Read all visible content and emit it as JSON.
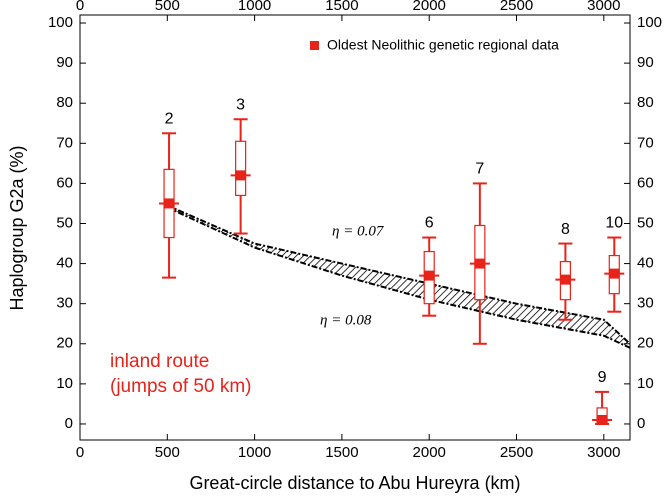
{
  "chart_data": {
    "type": "box",
    "x_label": "Great-circle distance to Abu Hureyra (km)",
    "y_label": "Haplogroup G2a (%)",
    "xlim": [
      0,
      3150
    ],
    "ylim": [
      -4,
      102
    ],
    "xticks": [
      0,
      500,
      1000,
      1500,
      2000,
      2500,
      3000
    ],
    "yticks": [
      0,
      10,
      20,
      30,
      40,
      50,
      60,
      70,
      80,
      90,
      100
    ],
    "legend": "Oldest Neolithic genetic regional data",
    "legend_position": "upper right",
    "color": "#e8231a",
    "boxes": [
      {
        "label": "2",
        "x": 510,
        "mean": 55,
        "q1": 46.5,
        "q3": 63.5,
        "low": 36.5,
        "high": 72.5
      },
      {
        "label": "3",
        "x": 920,
        "mean": 62,
        "q1": 57,
        "q3": 70.5,
        "low": 47.5,
        "high": 76
      },
      {
        "label": "6",
        "x": 2000,
        "mean": 37,
        "q1": 30,
        "q3": 43,
        "low": 27,
        "high": 46.5
      },
      {
        "label": "7",
        "x": 2290,
        "mean": 40,
        "q1": 31,
        "q3": 49.5,
        "low": 20,
        "high": 60
      },
      {
        "label": "8",
        "x": 2780,
        "mean": 36,
        "q1": 31,
        "q3": 40.5,
        "low": 26,
        "high": 45
      },
      {
        "label": "9",
        "x": 2990,
        "mean": 1,
        "q1": 0,
        "q3": 4,
        "low": 0,
        "high": 8
      },
      {
        "label": "10",
        "x": 3060,
        "mean": 37.5,
        "q1": 32.5,
        "q3": 42,
        "low": 28,
        "high": 46.5
      }
    ],
    "curves": [
      {
        "name": "η = 0.07",
        "x": [
          500,
          1000,
          1500,
          2000,
          2500,
          3000,
          3150
        ],
        "values": [
          54.5,
          45,
          40,
          35,
          30,
          26,
          20
        ]
      },
      {
        "name": "η = 0.08",
        "x": [
          500,
          1000,
          1500,
          2000,
          2500,
          3000,
          3150
        ],
        "values": [
          54,
          44,
          37,
          31,
          26,
          22,
          19
        ]
      }
    ],
    "annotation": [
      "inland route",
      "(jumps of 50 km)"
    ]
  }
}
